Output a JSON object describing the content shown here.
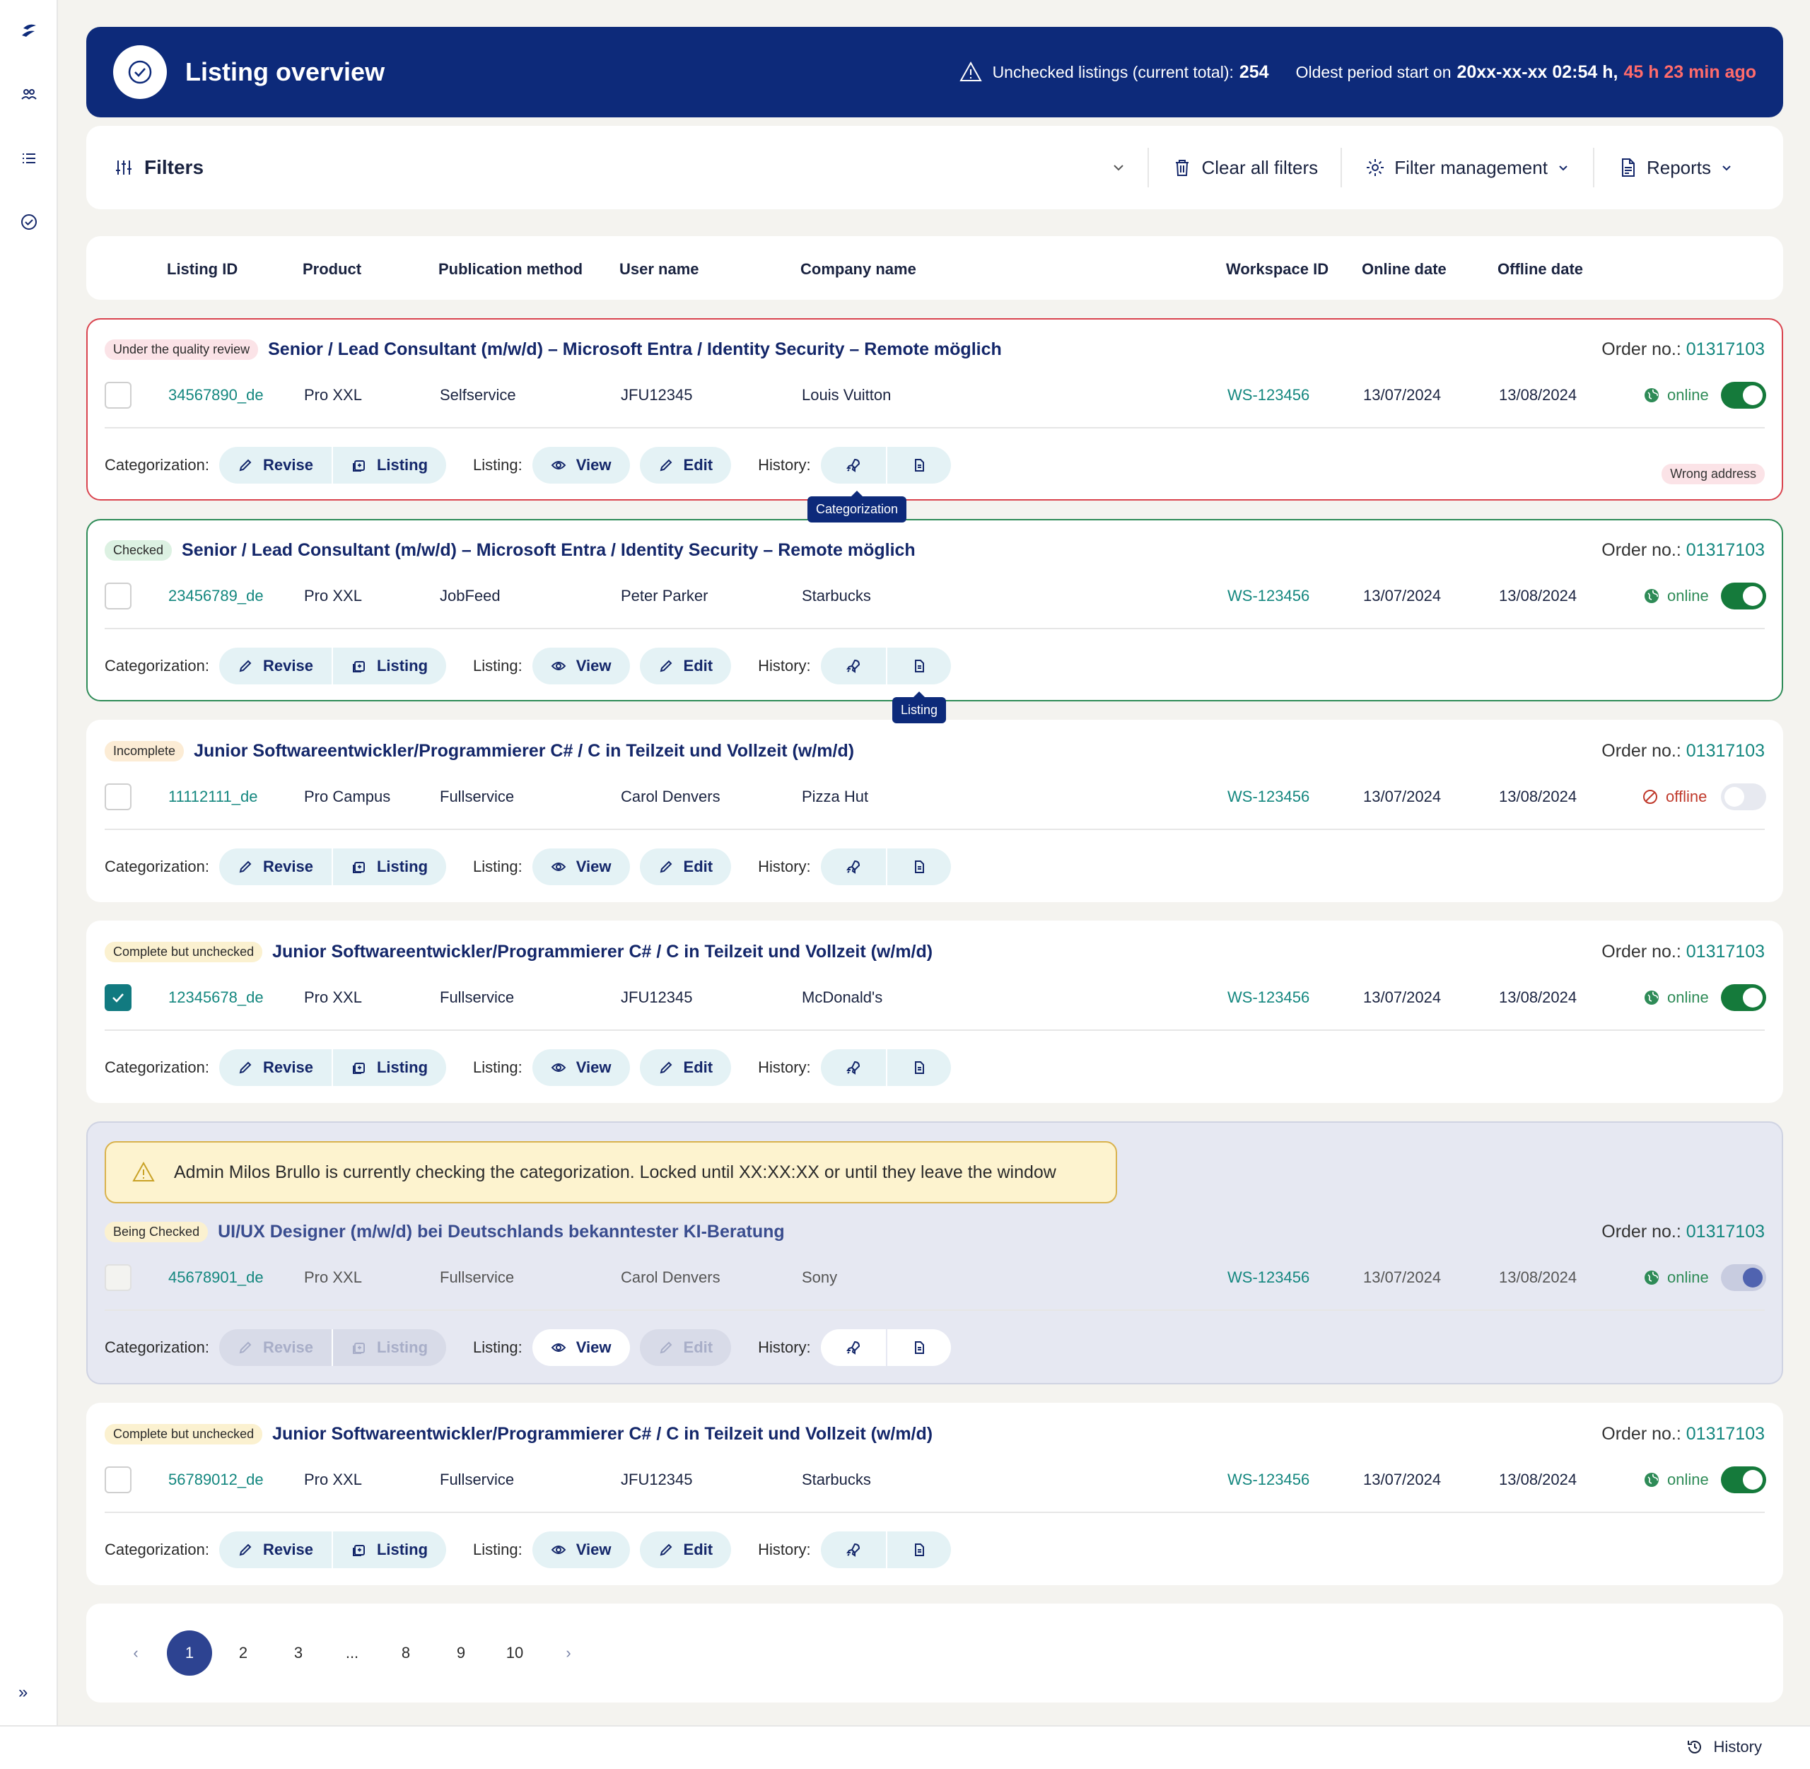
{
  "header": {
    "title": "Listing overview",
    "unchecked_label": "Unchecked listings (current total):",
    "unchecked_count": "254",
    "oldest_label": "Oldest period start on",
    "oldest_value": "20xx-xx-xx 02:54 h,",
    "oldest_ago": "45 h 23 min ago"
  },
  "filters": {
    "title": "Filters",
    "clear_label": "Clear all filters",
    "management_label": "Filter management",
    "reports_label": "Reports"
  },
  "columns": [
    "Listing ID",
    "Product",
    "Publication method",
    "User name",
    "Company name",
    "Workspace ID",
    "Online date",
    "Offline date"
  ],
  "labels": {
    "order_no": "Order no.:",
    "categorization": "Categorization:",
    "listing": "Listing:",
    "history": "History:",
    "revise": "Revise",
    "listing_btn": "Listing",
    "view": "View",
    "edit": "Edit"
  },
  "cards": [
    {
      "status": "Under the quality review",
      "title": "Senior / Lead Consultant (m/w/d) – Microsoft Entra / Identity Security – Remote möglich",
      "order": "01317103",
      "listing_id": "34567890_de",
      "product": "Pro XXL",
      "method": "Selfservice",
      "user": "JFU12345",
      "company": "Louis Vuitton",
      "workspace": "WS-123456",
      "online_date": "13/07/2024",
      "offline_date": "13/08/2024",
      "state": "online",
      "tag": "Wrong address",
      "tooltip": "Categorization"
    },
    {
      "status": "Checked",
      "title": "Senior / Lead Consultant (m/w/d) – Microsoft Entra / Identity Security – Remote möglich",
      "order": "01317103",
      "listing_id": "23456789_de",
      "product": "Pro XXL",
      "method": "JobFeed",
      "user": "Peter Parker",
      "company": "Starbucks",
      "workspace": "WS-123456",
      "online_date": "13/07/2024",
      "offline_date": "13/08/2024",
      "state": "online",
      "tooltip": "Listing"
    },
    {
      "status": "Incomplete",
      "title": "Junior Softwareentwickler/Programmierer C# / C in Teilzeit und Vollzeit (w/m/d)",
      "order": "01317103",
      "listing_id": "11112111_de",
      "product": "Pro Campus",
      "method": "Fullservice",
      "user": "Carol Denvers",
      "company": "Pizza Hut",
      "workspace": "WS-123456",
      "online_date": "13/07/2024",
      "offline_date": "13/08/2024",
      "state": "offline"
    },
    {
      "status": "Complete but unchecked",
      "title": "Junior Softwareentwickler/Programmierer C# / C in Teilzeit und Vollzeit (w/m/d)",
      "order": "01317103",
      "listing_id": "12345678_de",
      "product": "Pro XXL",
      "method": "Fullservice",
      "user": "JFU12345",
      "company": "McDonald's",
      "workspace": "WS-123456",
      "online_date": "13/07/2024",
      "offline_date": "13/08/2024",
      "state": "online"
    },
    {
      "status": "Being Checked",
      "banner": "Admin Milos Brullo is currently checking the categorization. Locked until XX:XX:XX or until they leave the window",
      "title": "UI/UX Designer (m/w/d) bei Deutschlands bekanntester KI-Beratung",
      "order": "01317103",
      "listing_id": "45678901_de",
      "product": "Pro XXL",
      "method": "Fullservice",
      "user": "Carol Denvers",
      "company": "Sony",
      "workspace": "WS-123456",
      "online_date": "13/07/2024",
      "offline_date": "13/08/2024",
      "state": "online"
    },
    {
      "status": "Complete but unchecked",
      "title": "Junior Softwareentwickler/Programmierer C# / C in Teilzeit und Vollzeit (w/m/d)",
      "order": "01317103",
      "listing_id": "56789012_de",
      "product": "Pro XXL",
      "method": "Fullservice",
      "user": "JFU12345",
      "company": "Starbucks",
      "workspace": "WS-123456",
      "online_date": "13/07/2024",
      "offline_date": "13/08/2024",
      "state": "online"
    }
  ],
  "pagination": {
    "pages": [
      "1",
      "2",
      "3",
      "...",
      "8",
      "9",
      "10"
    ],
    "current": "1"
  },
  "footer": {
    "history_label": "History"
  },
  "colors": {
    "header_bg": "#0d2a7a",
    "accent_teal": "#14877f",
    "online_green": "#157a3b",
    "alert_red": "#d9434e"
  }
}
